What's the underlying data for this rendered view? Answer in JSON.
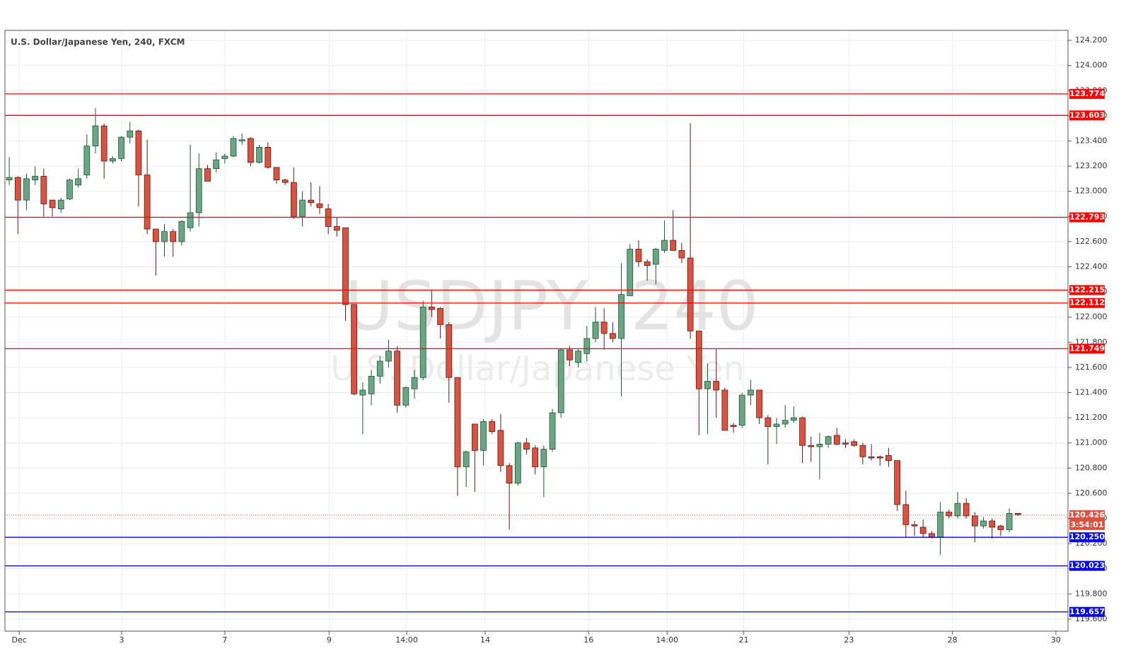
{
  "chart_data": {
    "type": "candlestick",
    "title": "U.S. Dollar/Japanese Yen, 240, FXCM",
    "watermark_symbol": "USDJPY, 240",
    "watermark_name": "U.S. Dollar/Japanese Yen",
    "up_color": "#6ba583",
    "up_border": "#225437",
    "down_color": "#d75442",
    "down_border": "#5b1a13",
    "grid": true,
    "xlim": [
      -0.5,
      122.8
    ],
    "ylim": [
      119.504,
      124.279
    ],
    "xticks": [
      {
        "value": 1.15,
        "label": "Dec"
      },
      {
        "value": 13.04,
        "label": "3"
      },
      {
        "value": 25,
        "label": "7"
      },
      {
        "value": 37.1,
        "label": "9"
      },
      {
        "value": 46.1,
        "label": "14:00"
      },
      {
        "value": 55.2,
        "label": "14"
      },
      {
        "value": 67.2,
        "label": "16"
      },
      {
        "value": 76.3,
        "label": "14:00"
      },
      {
        "value": 85.2,
        "label": "21"
      },
      {
        "value": 97.4,
        "label": "23"
      },
      {
        "value": 109.4,
        "label": "28"
      },
      {
        "value": 121.4,
        "label": "30"
      }
    ],
    "yticks": [
      {
        "value": 119.6,
        "label": "119.600"
      },
      {
        "value": 119.8,
        "label": "119.800"
      },
      {
        "value": 120,
        "label": "120.000"
      },
      {
        "value": 120.2,
        "label": "120.200"
      },
      {
        "value": 120.4,
        "label": "120.400"
      },
      {
        "value": 120.6,
        "label": "120.600"
      },
      {
        "value": 120.8,
        "label": "120.800"
      },
      {
        "value": 121,
        "label": "121.000"
      },
      {
        "value": 121.2,
        "label": "121.200"
      },
      {
        "value": 121.4,
        "label": "121.400"
      },
      {
        "value": 121.6,
        "label": "121.600"
      },
      {
        "value": 121.8,
        "label": "121.800"
      },
      {
        "value": 122,
        "label": "122.000"
      },
      {
        "value": 122.2,
        "label": "122.200"
      },
      {
        "value": 122.4,
        "label": "122.400"
      },
      {
        "value": 122.6,
        "label": "122.600"
      },
      {
        "value": 122.8,
        "label": "122.800"
      },
      {
        "value": 123,
        "label": "123.000"
      },
      {
        "value": 123.2,
        "label": "123.200"
      },
      {
        "value": 123.4,
        "label": "123.400"
      },
      {
        "value": 123.6,
        "label": "123.600"
      },
      {
        "value": 123.8,
        "label": "123.800"
      },
      {
        "value": 124,
        "label": "124.000"
      },
      {
        "value": 124.2,
        "label": "124.200"
      }
    ],
    "levels": [
      {
        "value": 123.774,
        "color": "#ff0000"
      },
      {
        "value": 123.603,
        "color": "#ff0000"
      },
      {
        "value": 122.793,
        "color": "#ff0000"
      },
      {
        "value": 122.215,
        "color": "#ff0000"
      },
      {
        "value": 122.112,
        "color": "#ff0000"
      },
      {
        "value": 121.749,
        "color": "#ff0000"
      },
      {
        "value": 120.25,
        "label": "120.250",
        "color": "#0000ff"
      },
      {
        "value": 120.023,
        "color": "#0000ff"
      },
      {
        "value": 119.657,
        "color": "#0000ff"
      }
    ],
    "last_price": {
      "value": 120.426,
      "countdown": "3:54:01",
      "color": "#d75442"
    },
    "open": [
      123.09,
      123.11,
      122.93,
      123.09,
      123.12,
      122.93,
      122.86,
      122.94,
      123.05,
      123.13,
      123.36,
      123.52,
      123.24,
      123.26,
      123.43,
      123.48,
      123.13,
      122.7,
      122.6,
      122.68,
      122.6,
      122.71,
      122.83,
      123.18,
      123.18,
      123.26,
      123.28,
      123.4,
      123.42,
      123.23,
      123.35,
      123.19,
      123.09,
      123.07,
      122.8,
      122.93,
      122.9,
      122.86,
      122.72,
      122.71,
      122.1,
      121.38,
      121.39,
      121.53,
      121.65,
      121.73,
      121.3,
      121.43,
      121.52,
      122.08,
      122.07,
      121.94,
      121.52,
      120.81,
      121.15,
      120.94,
      121.17,
      121.1,
      120.82,
      120.68,
      121.0,
      120.96,
      120.81,
      120.95,
      121.24,
      121.74,
      121.64,
      121.71,
      121.83,
      121.96,
      121.87,
      121.83,
      122.17,
      122.54,
      122.44,
      122.42,
      122.53,
      122.61,
      122.53,
      122.47,
      121.89,
      121.43,
      121.49,
      121.42,
      121.14,
      121.14,
      121.38,
      121.42,
      121.2,
      121.13,
      121.15,
      121.18,
      121.2,
      120.98,
      120.97,
      120.99,
      121.06,
      121.0,
      121.01,
      120.98,
      120.89,
      120.89,
      120.9,
      120.86,
      120.51,
      120.35,
      120.33,
      120.28,
      120.25,
      120.45,
      120.42,
      120.52,
      120.42,
      120.34,
      120.38,
      120.34,
      120.31,
      120.44
    ],
    "high": [
      123.27,
      123.12,
      123.14,
      123.2,
      123.18,
      122.93,
      122.95,
      123.1,
      123.18,
      123.45,
      123.66,
      123.54,
      123.28,
      123.44,
      123.55,
      123.49,
      123.41,
      122.7,
      122.74,
      122.7,
      122.77,
      123.37,
      123.3,
      123.21,
      123.31,
      123.3,
      123.44,
      123.46,
      123.43,
      123.37,
      123.39,
      123.19,
      123.1,
      123.19,
      123.0,
      123.07,
      123.04,
      122.9,
      122.79,
      122.71,
      122.1,
      121.48,
      121.58,
      121.69,
      121.82,
      121.77,
      121.45,
      121.58,
      122.13,
      122.22,
      122.08,
      121.96,
      121.52,
      120.94,
      121.15,
      121.19,
      121.19,
      121.23,
      120.84,
      121.01,
      121.04,
      120.98,
      120.98,
      121.27,
      121.75,
      121.77,
      121.75,
      121.93,
      122.08,
      122.07,
      121.96,
      122.43,
      122.58,
      122.61,
      122.46,
      122.55,
      122.77,
      122.85,
      122.59,
      123.54,
      121.89,
      121.63,
      121.75,
      121.44,
      121.16,
      121.4,
      121.5,
      121.42,
      121.22,
      121.2,
      121.3,
      121.29,
      121.21,
      121.05,
      121.08,
      121.06,
      121.12,
      121.03,
      121.03,
      121.0,
      120.99,
      120.9,
      120.96,
      120.86,
      120.62,
      120.38,
      120.39,
      120.3,
      120.53,
      120.47,
      120.61,
      120.56,
      120.45,
      120.41,
      120.4,
      120.35,
      120.48,
      120.44
    ],
    "low": [
      123.05,
      122.66,
      122.85,
      123.05,
      122.8,
      122.8,
      122.83,
      122.93,
      123.03,
      123.1,
      123.3,
      123.1,
      123.22,
      123.24,
      123.38,
      122.88,
      122.66,
      122.33,
      122.48,
      122.48,
      122.57,
      122.68,
      122.72,
      123.08,
      123.15,
      123.22,
      123.27,
      123.37,
      123.2,
      123.22,
      123.18,
      123.06,
      123.05,
      122.78,
      122.72,
      122.88,
      122.82,
      122.66,
      122.64,
      121.97,
      121.38,
      121.07,
      121.3,
      121.47,
      121.6,
      121.24,
      121.28,
      121.35,
      121.5,
      122.0,
      121.83,
      121.32,
      120.58,
      120.65,
      120.61,
      120.82,
      121.07,
      120.77,
      120.31,
      120.66,
      120.91,
      120.75,
      120.57,
      120.93,
      121.2,
      121.61,
      121.6,
      121.65,
      121.8,
      121.74,
      121.8,
      121.37,
      122.18,
      122.4,
      122.29,
      122.26,
      122.51,
      122.53,
      122.43,
      121.83,
      121.06,
      121.07,
      121.2,
      121.1,
      121.08,
      121.12,
      121.3,
      121.15,
      120.83,
      120.99,
      121.12,
      121.16,
      120.84,
      120.85,
      120.71,
      120.96,
      120.98,
      120.96,
      120.97,
      120.83,
      120.86,
      120.82,
      120.81,
      120.46,
      120.25,
      120.26,
      120.25,
      120.24,
      120.11,
      120.4,
      120.4,
      120.4,
      120.21,
      120.32,
      120.24,
      120.26,
      120.29,
      120.42
    ],
    "close": [
      123.11,
      122.93,
      123.1,
      123.12,
      122.9,
      122.87,
      122.93,
      123.09,
      123.1,
      123.36,
      123.52,
      123.24,
      123.26,
      123.43,
      123.48,
      123.13,
      122.7,
      122.6,
      122.68,
      122.6,
      122.76,
      122.83,
      123.18,
      123.08,
      123.25,
      123.28,
      123.42,
      123.41,
      123.23,
      123.35,
      123.19,
      123.09,
      123.07,
      122.8,
      122.93,
      122.91,
      122.87,
      122.72,
      122.69,
      122.1,
      121.39,
      121.42,
      121.53,
      121.65,
      121.73,
      121.3,
      121.44,
      121.52,
      122.08,
      122.06,
      121.94,
      121.52,
      120.81,
      120.93,
      120.94,
      121.17,
      121.09,
      120.82,
      120.68,
      121.0,
      120.95,
      120.81,
      120.95,
      121.24,
      121.74,
      121.66,
      121.73,
      121.83,
      121.96,
      121.87,
      121.83,
      122.18,
      122.54,
      122.44,
      122.41,
      122.54,
      122.61,
      122.53,
      122.47,
      121.89,
      121.43,
      121.49,
      121.42,
      121.1,
      121.13,
      121.38,
      121.42,
      121.2,
      121.13,
      121.15,
      121.18,
      121.2,
      120.98,
      120.97,
      120.99,
      121.05,
      120.99,
      120.99,
      120.98,
      120.89,
      120.88,
      120.88,
      120.86,
      120.51,
      120.35,
      120.34,
      120.28,
      120.25,
      120.45,
      120.42,
      120.52,
      120.42,
      120.34,
      120.38,
      120.33,
      120.31,
      120.44,
      120.43
    ]
  }
}
